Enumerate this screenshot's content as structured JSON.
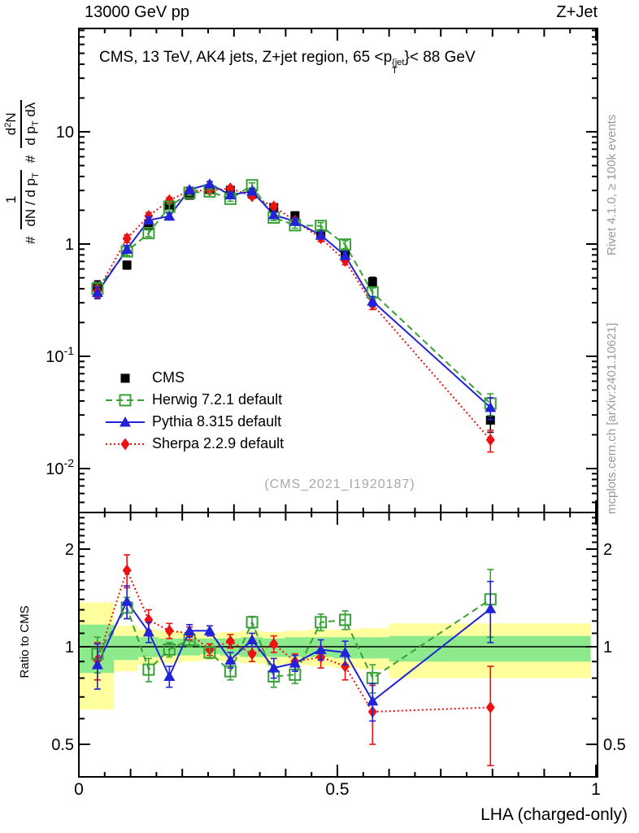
{
  "header": {
    "left": "13000 GeV pp",
    "right": "Z+Jet"
  },
  "panel_title": {
    "pre": "CMS, 13 TeV, AK4 jets, Z+jet region, 65 <p",
    "sup": "{jet",
    "sub": "T",
    "post": "}< 88 GeV"
  },
  "watermark": "(CMS_2021_I1920187)",
  "side_notes": {
    "top_right": "Rivet 4.1.0, ≥ 100k events",
    "bottom_right": "mcplots.cern.ch [arXiv:2401.10621]"
  },
  "y_axis_label": {
    "hash1": "#",
    "frac1_num": "1",
    "frac1_den_pre": "dN / d p",
    "frac1_den_sub": "T",
    "hash2": "#",
    "frac2_num_pre": "d",
    "frac2_num_sup": "2",
    "frac2_num_post": "N",
    "frac2_den_pre": "d p",
    "frac2_den_sub": "T",
    "frac2_den_post": " dλ"
  },
  "ratio_axis_label": "Ratio to CMS",
  "x_axis_label": "LHA (charged-only)",
  "axis_ticks": {
    "main_y": [
      {
        "v": 10,
        "base": "10",
        "exp": ""
      },
      {
        "v": 1,
        "base": "1",
        "exp": ""
      },
      {
        "v": 0.1,
        "base": "10",
        "exp": "-1"
      },
      {
        "v": 0.01,
        "base": "10",
        "exp": "-2"
      }
    ],
    "ratio_y": [
      {
        "v": 2,
        "t": "2"
      },
      {
        "v": 1,
        "t": "1"
      },
      {
        "v": 0.5,
        "t": "0.5"
      }
    ],
    "x": [
      {
        "v": 0,
        "t": "0"
      },
      {
        "v": 0.5,
        "t": "0.5"
      },
      {
        "v": 1,
        "t": "1"
      }
    ]
  },
  "colors": {
    "cms": "#000000",
    "herwig": "#37a037",
    "pythia": "#2222d8",
    "sherpa": "#ee1111",
    "band_yellow": "#ffff9d",
    "band_green": "#8ce98c",
    "frame": "#000000",
    "watermark": "#a8a8a8",
    "side_note": "#999999"
  },
  "chart_data": {
    "type": "line",
    "title": "CMS, 13 TeV, AK4 jets, Z+jet region, 65 < pT{jet} < 88 GeV",
    "xlabel": "LHA (charged-only)",
    "ylabel": "# 1/(dN/dpT) # d2N/(dpT dλ)",
    "ratio_label": "Ratio to CMS",
    "x_range": [
      0,
      1
    ],
    "main_y_scale": "log",
    "main_y_range": [
      0.004,
      83
    ],
    "ratio_y_scale": "log",
    "ratio_y_range": [
      0.4,
      2.59
    ],
    "legend_position": "middle-left",
    "grid": false,
    "x": [
      0.036,
      0.093,
      0.135,
      0.175,
      0.214,
      0.253,
      0.293,
      0.335,
      0.377,
      0.418,
      0.468,
      0.515,
      0.568,
      0.796
    ],
    "rel_err_main": [
      0.12,
      0.08,
      0.07,
      0.06,
      0.05,
      0.05,
      0.05,
      0.05,
      0.06,
      0.06,
      0.07,
      0.08,
      0.1,
      0.22
    ],
    "series": [
      {
        "name": "CMS",
        "role": "reference-data",
        "marker": "filled-square",
        "line": "none",
        "color_key": "cms",
        "values": [
          0.42,
          0.65,
          1.47,
          2.19,
          2.72,
          3.06,
          3.01,
          2.81,
          2.12,
          1.79,
          1.22,
          0.82,
          0.46,
          0.027
        ]
      },
      {
        "name": "Herwig 7.2.1 default",
        "role": "mc",
        "marker": "open-square",
        "line": "dashed",
        "color_key": "herwig",
        "values": [
          0.4,
          0.86,
          1.25,
          2.15,
          2.86,
          2.94,
          2.53,
          3.34,
          1.72,
          1.47,
          1.45,
          0.99,
          0.37,
          0.038
        ],
        "ratio": [
          0.95,
          1.32,
          0.85,
          0.98,
          1.05,
          0.96,
          0.84,
          1.19,
          0.81,
          0.82,
          1.19,
          1.21,
          0.8,
          1.4
        ],
        "ratio_err": [
          0.12,
          0.1,
          0.07,
          0.05,
          0.05,
          0.04,
          0.05,
          0.05,
          0.06,
          0.05,
          0.07,
          0.08,
          0.08,
          0.33
        ]
      },
      {
        "name": "Pythia 8.315 default",
        "role": "mc",
        "marker": "filled-triangle",
        "line": "solid",
        "color_key": "pythia",
        "values": [
          0.37,
          0.9,
          1.63,
          1.77,
          3.05,
          3.43,
          2.74,
          2.95,
          1.82,
          1.59,
          1.2,
          0.79,
          0.31,
          0.035
        ],
        "ratio": [
          0.88,
          1.38,
          1.11,
          0.81,
          1.12,
          1.12,
          0.91,
          1.05,
          0.86,
          0.89,
          0.98,
          0.96,
          0.68,
          1.31
        ],
        "ratio_err": [
          0.14,
          0.16,
          0.08,
          0.06,
          0.05,
          0.04,
          0.05,
          0.05,
          0.06,
          0.05,
          0.07,
          0.08,
          0.09,
          0.28
        ]
      },
      {
        "name": "Sherpa 2.2.9 default",
        "role": "mc",
        "marker": "filled-diamond",
        "line": "dotted",
        "color_key": "sherpa",
        "values": [
          0.38,
          1.12,
          1.78,
          2.45,
          2.99,
          3.0,
          3.13,
          2.67,
          2.16,
          1.61,
          1.13,
          0.71,
          0.29,
          0.018
        ],
        "ratio": [
          0.91,
          1.72,
          1.21,
          1.12,
          1.1,
          0.98,
          1.04,
          0.95,
          1.02,
          0.9,
          0.93,
          0.87,
          0.63,
          0.65
        ],
        "ratio_err": [
          0.12,
          0.2,
          0.09,
          0.06,
          0.05,
          0.04,
          0.05,
          0.05,
          0.06,
          0.05,
          0.07,
          0.08,
          0.13,
          0.22
        ]
      }
    ],
    "bands": {
      "edges": [
        0,
        0.068,
        0.115,
        0.155,
        0.195,
        0.235,
        0.273,
        0.313,
        0.356,
        0.398,
        0.442,
        0.492,
        0.542,
        0.6,
        0.99
      ],
      "yellow": [
        [
          0.64,
          1.37
        ],
        [
          0.84,
          1.16
        ],
        [
          0.88,
          1.13
        ],
        [
          0.89,
          1.12
        ],
        [
          0.9,
          1.11
        ],
        [
          0.91,
          1.1
        ],
        [
          0.9,
          1.11
        ],
        [
          0.89,
          1.12
        ],
        [
          0.88,
          1.11
        ],
        [
          0.88,
          1.12
        ],
        [
          0.87,
          1.13
        ],
        [
          0.86,
          1.13
        ],
        [
          0.85,
          1.14
        ],
        [
          0.8,
          1.18
        ]
      ],
      "green": [
        [
          0.83,
          1.17
        ],
        [
          0.91,
          1.08
        ],
        [
          0.93,
          1.07
        ],
        [
          0.94,
          1.06
        ],
        [
          0.94,
          1.06
        ],
        [
          0.95,
          1.06
        ],
        [
          0.94,
          1.06
        ],
        [
          0.93,
          1.07
        ],
        [
          0.93,
          1.06
        ],
        [
          0.93,
          1.07
        ],
        [
          0.93,
          1.07
        ],
        [
          0.92,
          1.07
        ],
        [
          0.92,
          1.07
        ],
        [
          0.9,
          1.08
        ]
      ]
    }
  }
}
